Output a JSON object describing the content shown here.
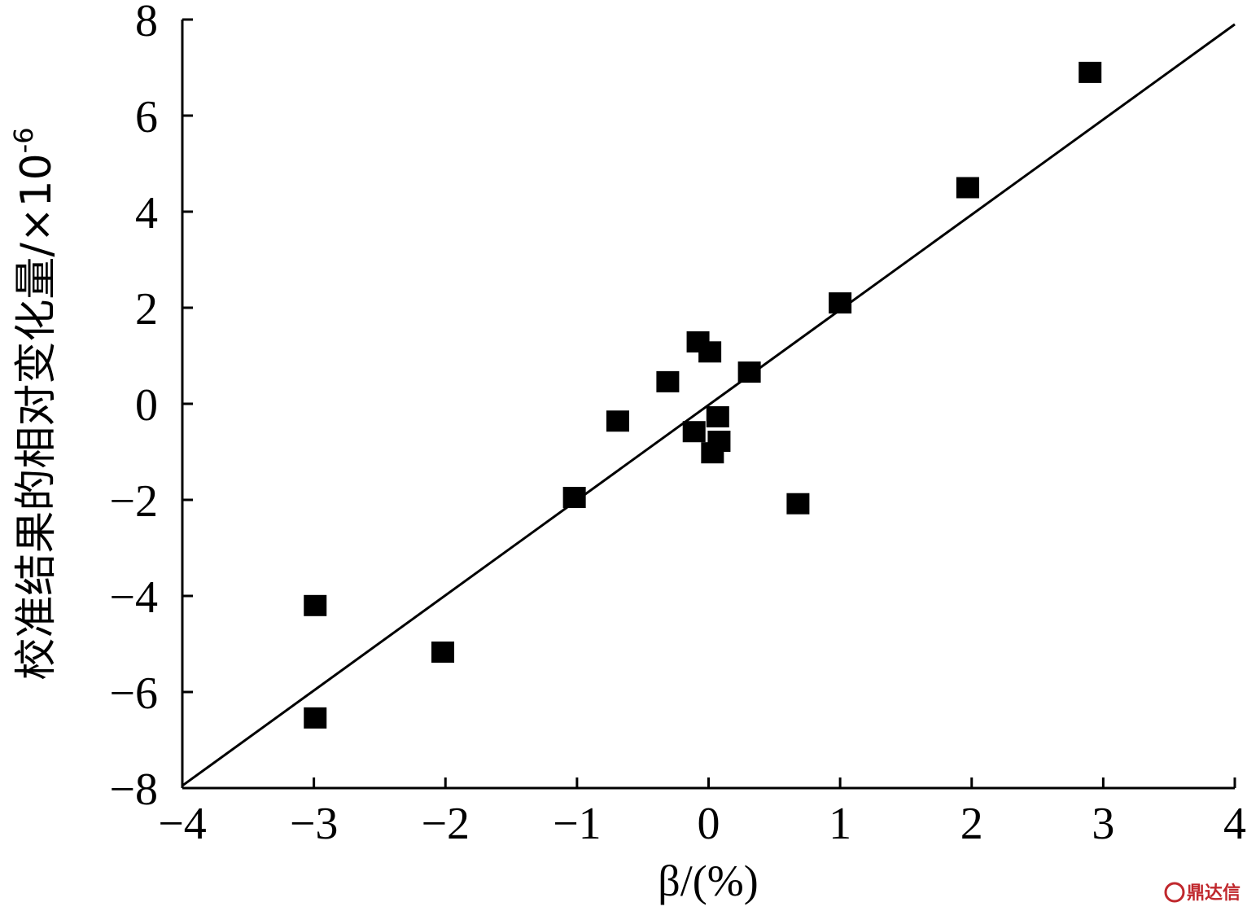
{
  "chart_data": {
    "type": "scatter",
    "xlabel": "β/(%)",
    "ylabel": "校准结果的相对变化量/×10",
    "ylabel_exponent": "-6",
    "xlim": [
      -4,
      4
    ],
    "ylim": [
      -8,
      8
    ],
    "xticks": [
      -4,
      -3,
      -2,
      -1,
      0,
      1,
      2,
      3,
      4
    ],
    "yticks": [
      -8,
      -6,
      -4,
      -2,
      0,
      2,
      4,
      6,
      8
    ],
    "grid": false,
    "legend": "none",
    "points": [
      {
        "x": 2.9,
        "y": 6.9
      },
      {
        "x": 1.97,
        "y": 4.5
      },
      {
        "x": 1.0,
        "y": 2.1
      },
      {
        "x": 0.31,
        "y": 0.66
      },
      {
        "x": -0.08,
        "y": 1.29
      },
      {
        "x": 0.01,
        "y": 1.08
      },
      {
        "x": -0.31,
        "y": 0.46
      },
      {
        "x": -0.69,
        "y": -0.36
      },
      {
        "x": 0.07,
        "y": -0.27
      },
      {
        "x": -0.11,
        "y": -0.58
      },
      {
        "x": 0.08,
        "y": -0.78
      },
      {
        "x": 0.03,
        "y": -1.02
      },
      {
        "x": 0.68,
        "y": -2.08
      },
      {
        "x": -1.02,
        "y": -1.95
      },
      {
        "x": -2.02,
        "y": -5.17
      },
      {
        "x": -2.99,
        "y": -4.2
      },
      {
        "x": -2.99,
        "y": -6.54
      }
    ],
    "fit_line": {
      "x": [
        -4,
        4
      ],
      "y": [
        -7.95,
        7.9
      ]
    },
    "marker_color": "#000000",
    "line_color": "#000000"
  },
  "watermark": "鼎达信"
}
